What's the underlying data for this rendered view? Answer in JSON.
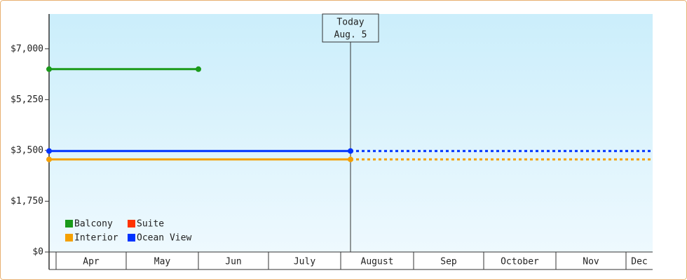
{
  "chart_data": {
    "type": "line",
    "categories": [
      "Apr",
      "May",
      "Jun",
      "July",
      "August",
      "Sep",
      "October",
      "Nov",
      "Dec"
    ],
    "ylim": [
      0,
      8200
    ],
    "yticks": [
      {
        "value": 0,
        "label": "$0"
      },
      {
        "value": 1750,
        "label": "$1,750"
      },
      {
        "value": 3500,
        "label": "$3,500"
      },
      {
        "value": 5250,
        "label": "$5,250"
      },
      {
        "value": 7000,
        "label": "$7,000"
      }
    ],
    "annotation": {
      "label": "Today",
      "date": "Aug. 5"
    },
    "series": [
      {
        "name": "Balcony",
        "color": "#1a9a1a",
        "values": [
          6300,
          6300,
          null,
          null,
          null,
          null,
          null,
          null,
          null
        ],
        "projected_values": [
          null,
          null,
          null,
          null,
          null,
          null,
          null,
          null,
          null
        ]
      },
      {
        "name": "Suite",
        "color": "#ff3300",
        "values": [
          null,
          null,
          null,
          null,
          null,
          null,
          null,
          null,
          null
        ],
        "projected_values": [
          null,
          null,
          null,
          null,
          null,
          null,
          null,
          null,
          null
        ]
      },
      {
        "name": "Interior",
        "color": "#f5a000",
        "values": [
          3190,
          3190,
          3190,
          3190,
          3190,
          null,
          null,
          null,
          null
        ],
        "projected_values": [
          null,
          null,
          null,
          null,
          3190,
          3190,
          3190,
          3190,
          3190
        ]
      },
      {
        "name": "Ocean View",
        "color": "#0033ff",
        "values": [
          3480,
          3480,
          3480,
          3480,
          3480,
          null,
          null,
          null,
          null
        ],
        "projected_values": [
          null,
          null,
          null,
          null,
          3480,
          3480,
          3480,
          3480,
          3480
        ]
      }
    ]
  }
}
